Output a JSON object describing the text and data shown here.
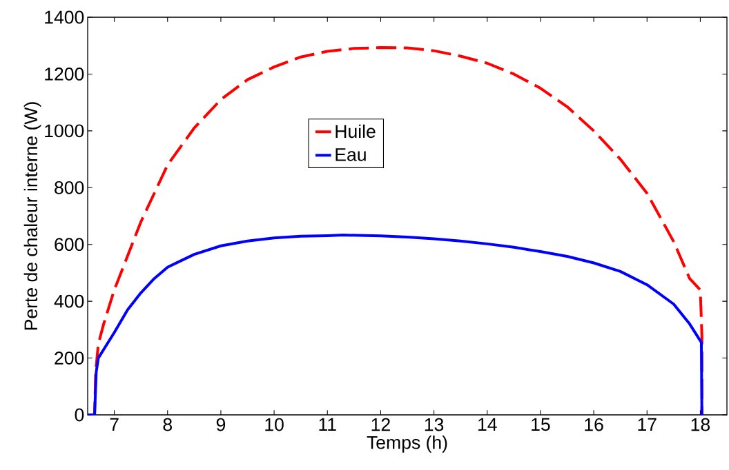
{
  "chart_data": {
    "type": "line",
    "xlabel": "Temps (h)",
    "ylabel": "Perte de chaleur interne (W)",
    "xlim": [
      6.5,
      18.5
    ],
    "ylim": [
      0,
      1400
    ],
    "xticks": [
      7,
      8,
      9,
      10,
      11,
      12,
      13,
      14,
      15,
      16,
      17,
      18
    ],
    "yticks": [
      0,
      200,
      400,
      600,
      800,
      1000,
      1200,
      1400
    ],
    "grid": false,
    "legend": "top",
    "marker": "none",
    "series": [
      {
        "name": "Huile",
        "color": "#ff0000",
        "line_style": "dashed",
        "x": [
          6.5,
          6.63,
          6.65,
          6.7,
          6.8,
          7,
          7.5,
          8,
          8.5,
          9,
          9.5,
          10,
          10.5,
          11,
          11.5,
          12,
          12.5,
          13,
          13.5,
          14,
          14.5,
          15,
          15.5,
          16,
          16.5,
          17,
          17.5,
          17.8,
          18.0,
          18.03,
          18.03
        ],
        "values": [
          0,
          0,
          150,
          250,
          320,
          440,
          680,
          880,
          1010,
          1110,
          1180,
          1225,
          1260,
          1280,
          1290,
          1293,
          1292,
          1282,
          1263,
          1238,
          1200,
          1150,
          1085,
          1000,
          900,
          780,
          610,
          480,
          440,
          280,
          0
        ]
      },
      {
        "name": "Eau",
        "color": "#0000ff",
        "line_style": "solid",
        "x": [
          6.5,
          6.63,
          6.66,
          6.7,
          7,
          7.25,
          7.5,
          7.75,
          8,
          8.5,
          9,
          9.5,
          10,
          10.5,
          11,
          11.3,
          12,
          12.5,
          13,
          13.5,
          14,
          14.5,
          15,
          15.5,
          16,
          16.5,
          17,
          17.5,
          17.8,
          18.02,
          18.03
        ],
        "values": [
          0,
          0,
          150,
          200,
          290,
          370,
          430,
          480,
          520,
          565,
          595,
          612,
          623,
          629,
          631,
          633,
          630,
          626,
          620,
          612,
          602,
          590,
          575,
          558,
          535,
          505,
          458,
          390,
          320,
          255,
          0
        ]
      }
    ]
  }
}
